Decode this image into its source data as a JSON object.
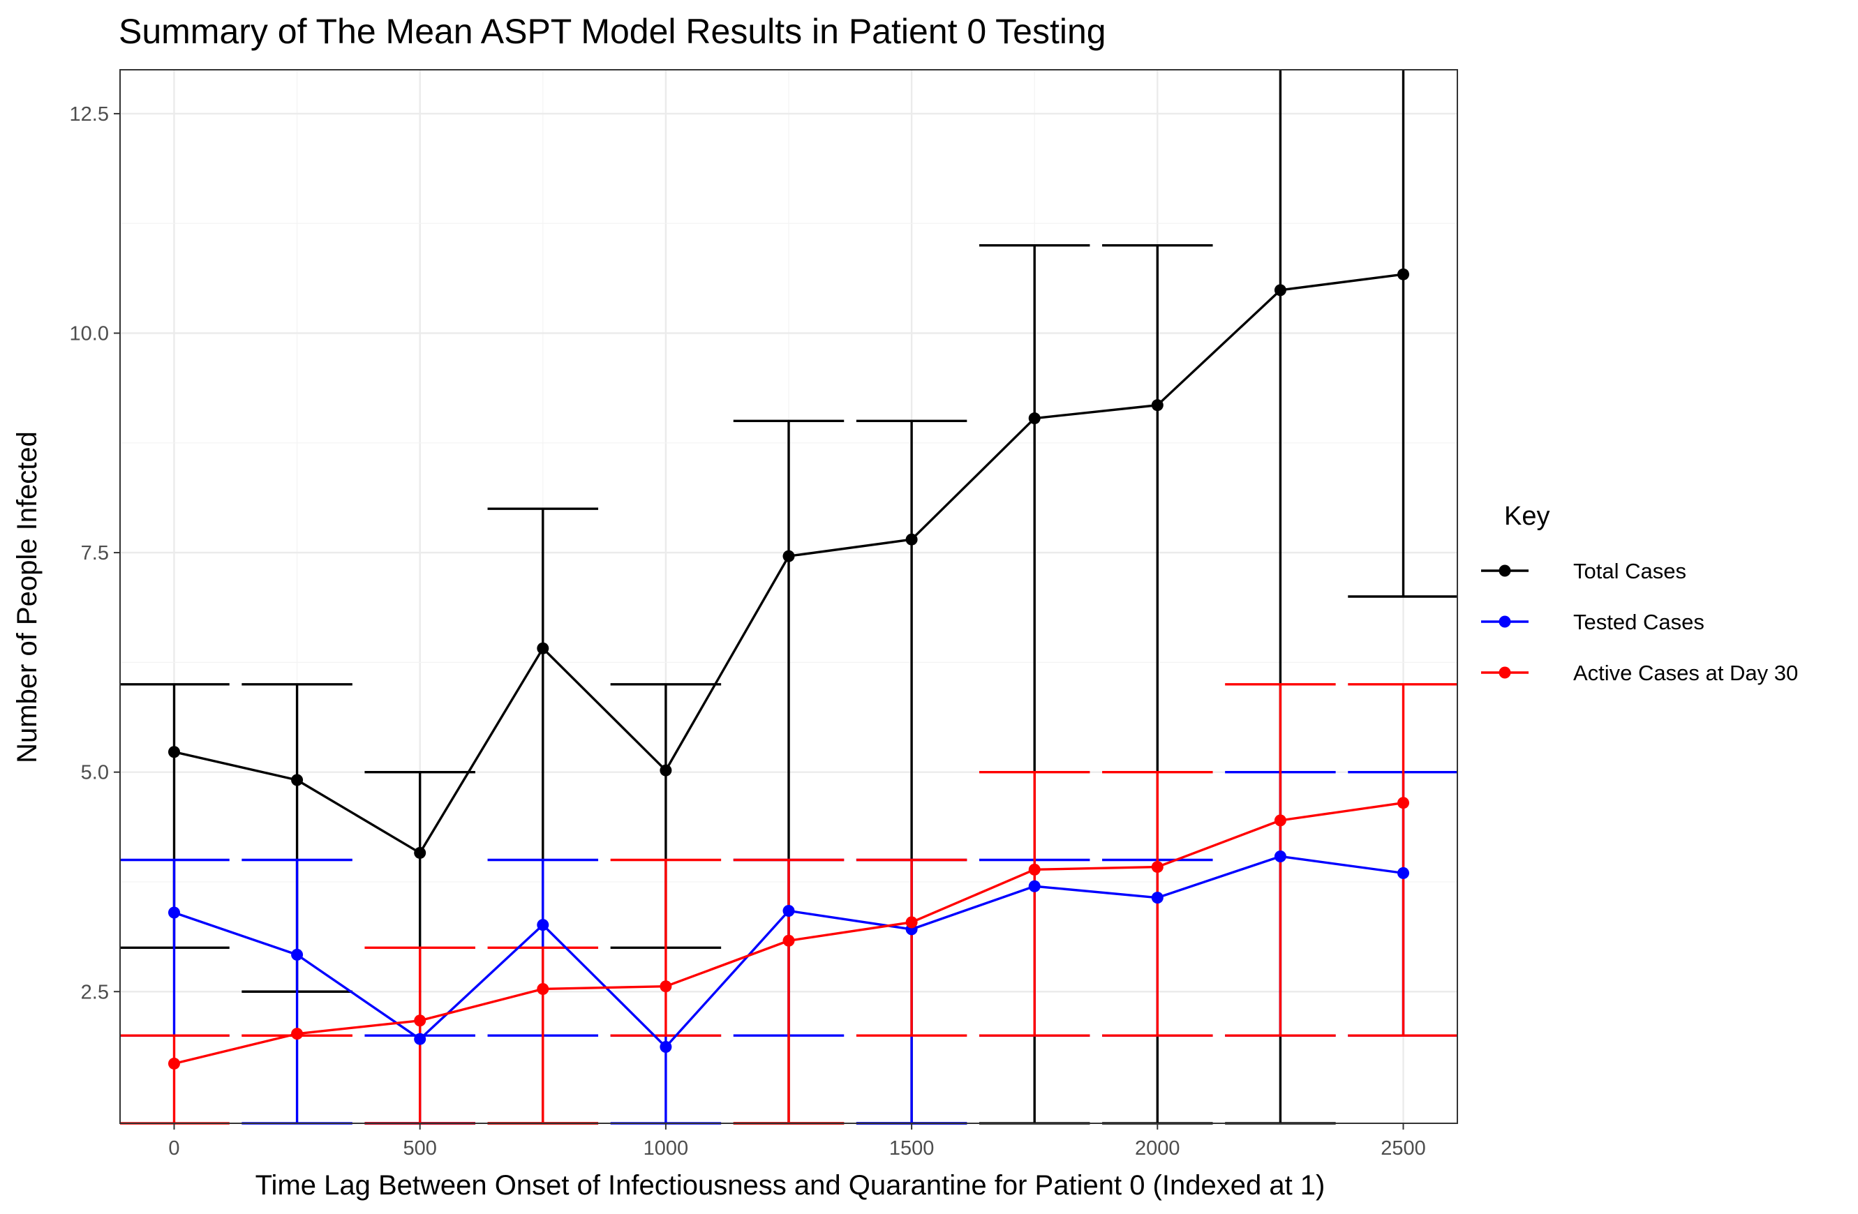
{
  "chart_data": {
    "type": "line",
    "title": "Summary of The Mean ASPT Model Results in Patient 0 Testing",
    "xlabel": "Time Lag Between Onset of Infectiousness and Quarantine for Patient 0 (Indexed at 1)",
    "ylabel": "Number of People Infected",
    "xlim": [
      -110,
      2610
    ],
    "ylim": [
      1.0,
      13.0
    ],
    "x_ticks": [
      0,
      500,
      1000,
      1500,
      2000,
      2500
    ],
    "y_ticks": [
      2.5,
      5.0,
      7.5,
      10.0,
      12.5
    ],
    "x_tick_labels": [
      "0",
      "500",
      "1000",
      "1500",
      "2000",
      "2500"
    ],
    "y_tick_labels": [
      "2.5",
      "5.0",
      "7.5",
      "10.0",
      "12.5"
    ],
    "grid": true,
    "legend": {
      "title": "Key",
      "position": "right"
    },
    "x": [
      0,
      250,
      500,
      750,
      1000,
      1250,
      1500,
      1750,
      2000,
      2250,
      2500
    ],
    "series": [
      {
        "name": "Total Cases",
        "color": "#000000",
        "values": [
          5.23,
          4.91,
          4.08,
          6.41,
          5.02,
          7.46,
          7.65,
          9.03,
          9.18,
          10.49,
          10.67
        ],
        "lower": [
          3.0,
          2.5,
          1.0,
          1.0,
          3.0,
          1.0,
          1.0,
          1.0,
          1.0,
          1.0,
          7.0
        ],
        "upper": [
          6.0,
          6.0,
          5.0,
          8.0,
          6.0,
          9.0,
          9.0,
          11.0,
          11.0,
          14.0,
          14.0
        ]
      },
      {
        "name": "Tested Cases",
        "color": "#0000ff",
        "values": [
          3.4,
          2.92,
          1.96,
          3.26,
          1.87,
          3.42,
          3.21,
          3.7,
          3.57,
          4.04,
          3.85
        ],
        "lower": [
          2.0,
          1.0,
          1.0,
          2.0,
          1.0,
          2.0,
          1.0,
          2.0,
          2.0,
          2.0,
          2.0
        ],
        "upper": [
          4.0,
          4.0,
          2.0,
          4.0,
          2.0,
          4.0,
          4.0,
          4.0,
          4.0,
          5.0,
          5.0
        ]
      },
      {
        "name": "Active Cases at Day 30",
        "color": "#ff0000",
        "values": [
          1.68,
          2.02,
          2.17,
          2.53,
          2.56,
          3.08,
          3.29,
          3.89,
          3.92,
          4.45,
          4.65
        ],
        "lower": [
          1.0,
          2.0,
          1.0,
          1.0,
          2.0,
          1.0,
          2.0,
          2.0,
          2.0,
          2.0,
          2.0
        ],
        "upper": [
          2.0,
          2.0,
          3.0,
          3.0,
          4.0,
          4.0,
          4.0,
          5.0,
          5.0,
          6.0,
          6.0
        ]
      }
    ]
  }
}
